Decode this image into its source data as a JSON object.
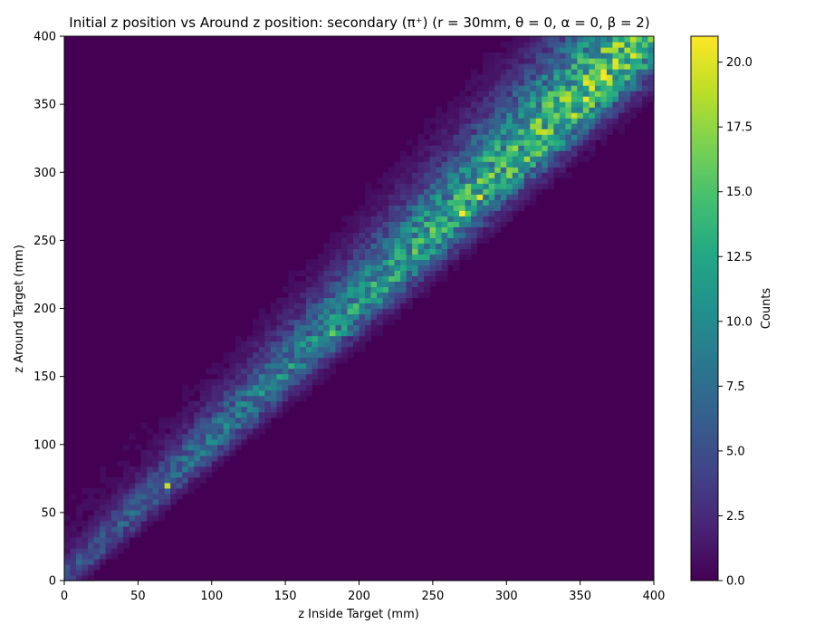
{
  "chart_data": {
    "type": "heatmap",
    "title": "Initial z position vs Around z position: secondary (π⁺) (r = 30mm, θ = 0, α = 0, β = 2)",
    "xlabel": "z Inside Target (mm)",
    "ylabel": "z Around Target (mm)",
    "xlim": [
      0,
      400
    ],
    "ylim": [
      0,
      400
    ],
    "xticks": [
      "0",
      "50",
      "100",
      "150",
      "200",
      "250",
      "300",
      "350",
      "400"
    ],
    "yticks": [
      "0",
      "50",
      "100",
      "150",
      "200",
      "250",
      "300",
      "350",
      "400"
    ],
    "bins": [
      100,
      100
    ],
    "colormap": "viridis",
    "colorbar": {
      "label": "Counts",
      "range": [
        0,
        21
      ],
      "ticks": [
        "0.0",
        "2.5",
        "5.0",
        "7.5",
        "10.0",
        "12.5",
        "15.0",
        "17.5",
        "20.0"
      ]
    },
    "distribution": {
      "description_of_ridge": "counts concentrated along the diagonal z_around ≈ z_inside, with spread above the diagonal",
      "ridge_points": [
        [
          20,
          20
        ],
        [
          50,
          55
        ],
        [
          100,
          105
        ],
        [
          150,
          155
        ],
        [
          200,
          205
        ],
        [
          250,
          255
        ],
        [
          300,
          305
        ],
        [
          350,
          350
        ],
        [
          395,
          398
        ]
      ],
      "peak_count": 21
    }
  }
}
